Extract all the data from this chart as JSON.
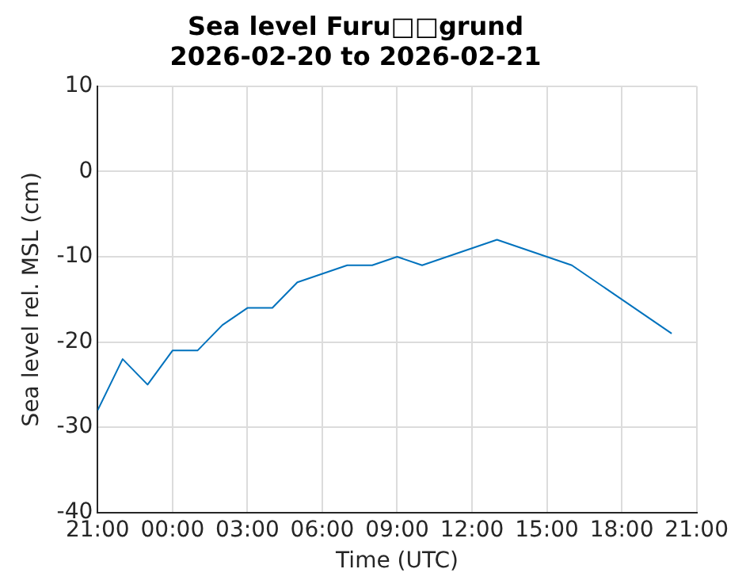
{
  "chart_data": {
    "type": "line",
    "title": [
      "Sea level Furu□□grund",
      "2026-02-20 to 2026-02-21"
    ],
    "xlabel": "Time (UTC)",
    "ylabel": "Sea level rel. MSL (cm)",
    "x": [
      "2026-02-20T21:00",
      "2026-02-20T22:00",
      "2026-02-20T23:00",
      "2026-02-21T00:00",
      "2026-02-21T01:00",
      "2026-02-21T02:00",
      "2026-02-21T03:00",
      "2026-02-21T04:00",
      "2026-02-21T05:00",
      "2026-02-21T06:00",
      "2026-02-21T07:00",
      "2026-02-21T08:00",
      "2026-02-21T09:00",
      "2026-02-21T10:00",
      "2026-02-21T13:00",
      "2026-02-21T16:00",
      "2026-02-21T20:00"
    ],
    "series": [
      {
        "color": "#0072bd",
        "values": [
          -28,
          -22,
          -25,
          -21,
          -21,
          -18,
          -16,
          -16,
          -13,
          -12,
          -11,
          -11,
          -10,
          -11,
          -8,
          -11,
          -19
        ]
      }
    ],
    "xlim": [
      "2026-02-20T21:00",
      "2026-02-21T21:00"
    ],
    "xticks": [
      {
        "value": "2026-02-20T21:00",
        "label": "21:00"
      },
      {
        "value": "2026-02-21T00:00",
        "label": "00:00"
      },
      {
        "value": "2026-02-21T03:00",
        "label": "03:00"
      },
      {
        "value": "2026-02-21T06:00",
        "label": "06:00"
      },
      {
        "value": "2026-02-21T09:00",
        "label": "09:00"
      },
      {
        "value": "2026-02-21T12:00",
        "label": "12:00"
      },
      {
        "value": "2026-02-21T15:00",
        "label": "15:00"
      },
      {
        "value": "2026-02-21T18:00",
        "label": "18:00"
      },
      {
        "value": "2026-02-21T21:00",
        "label": "21:00"
      }
    ],
    "ylim": [
      -40,
      10
    ],
    "yticks": [
      -40,
      -30,
      -20,
      -10,
      0,
      10
    ],
    "grid": true,
    "legend": false,
    "marker": "none",
    "line_style": "solid"
  }
}
